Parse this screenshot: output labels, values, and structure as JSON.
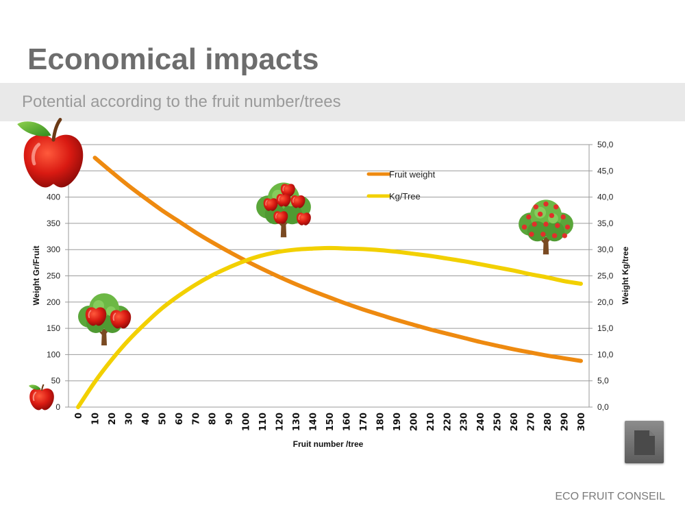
{
  "slide": {
    "title": "Economical impacts",
    "subtitle": "Potential according to the fruit number/trees",
    "footer": "ECO FRUIT CONSEIL"
  },
  "icons": [
    "apple-icon",
    "apple-tree-icon",
    "document-icon"
  ],
  "chart_data": {
    "type": "line",
    "xlabel": "Fruit number /tree",
    "ylabel": "Weight Gr/Fruit",
    "y2label": "Weight Kg/tree",
    "xlim": [
      0,
      300
    ],
    "ylim": [
      0,
      500
    ],
    "y2lim": [
      0,
      50
    ],
    "x_ticks": [
      0,
      10,
      20,
      30,
      40,
      50,
      60,
      70,
      80,
      90,
      100,
      110,
      120,
      130,
      140,
      150,
      160,
      170,
      180,
      190,
      200,
      210,
      220,
      230,
      240,
      250,
      260,
      270,
      280,
      290,
      300
    ],
    "y_ticks": [
      0,
      50,
      100,
      150,
      200,
      250,
      300,
      350,
      400
    ],
    "y_tick_labels": [
      "0",
      "50",
      "100",
      "150",
      "200",
      "250",
      "300",
      "350",
      "400"
    ],
    "y2_ticks": [
      0,
      5,
      10,
      15,
      20,
      25,
      30,
      35,
      40,
      45,
      50
    ],
    "y2_tick_labels": [
      "0,0",
      "5,0",
      "10,0",
      "15,0",
      "20,0",
      "25,0",
      "30,0",
      "35,0",
      "40,0",
      "45,0",
      "50,0"
    ],
    "grid": true,
    "legend_position": "top-center",
    "series": [
      {
        "name": "Fruit weight",
        "axis": "left",
        "color": "#ee8a10",
        "x": [
          10,
          20,
          30,
          40,
          50,
          60,
          70,
          80,
          90,
          100,
          110,
          120,
          130,
          140,
          150,
          160,
          170,
          180,
          190,
          200,
          210,
          220,
          230,
          240,
          250,
          260,
          270,
          280,
          290,
          300
        ],
        "values": [
          475,
          448,
          422,
          398,
          375,
          354,
          333,
          314,
          296,
          279,
          263,
          248,
          234,
          221,
          209,
          197,
          186,
          176,
          166,
          157,
          148,
          140,
          132,
          124,
          117,
          110,
          104,
          98,
          93,
          88
        ]
      },
      {
        "name": "Kg/Tree",
        "axis": "right",
        "color": "#f2d000",
        "x": [
          0,
          10,
          20,
          30,
          40,
          50,
          60,
          70,
          80,
          90,
          100,
          110,
          120,
          130,
          140,
          150,
          160,
          170,
          180,
          190,
          200,
          210,
          220,
          230,
          240,
          250,
          260,
          270,
          280,
          290,
          300
        ],
        "values": [
          0,
          4.8,
          9.0,
          12.7,
          15.9,
          18.8,
          21.2,
          23.3,
          25.1,
          26.6,
          27.9,
          28.9,
          29.6,
          30.0,
          30.2,
          30.3,
          30.2,
          30.1,
          29.9,
          29.6,
          29.2,
          28.8,
          28.3,
          27.8,
          27.2,
          26.6,
          26.0,
          25.3,
          24.7,
          24.0,
          23.5
        ]
      }
    ]
  }
}
